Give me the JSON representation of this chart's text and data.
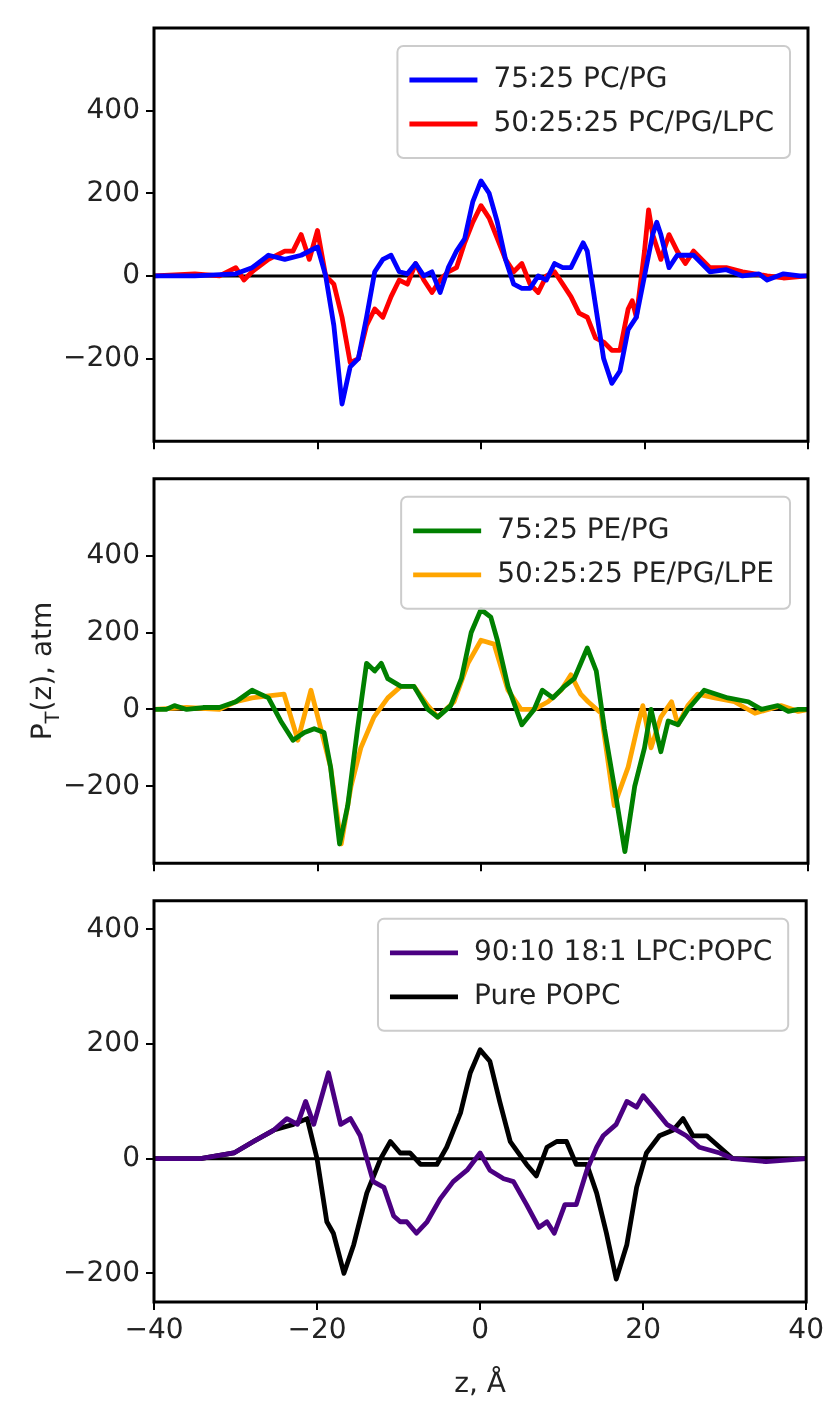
{
  "chart_data": [
    {
      "type": "line",
      "xlim": [
        -40,
        40
      ],
      "xticks": [
        -40,
        -20,
        0,
        20,
        40
      ],
      "ylim": [
        -400,
        600
      ],
      "yticks": [
        -200,
        0,
        200,
        400
      ],
      "tick_labels": "y",
      "grid": false,
      "legend": "top right",
      "ref_lines": [
        {
          "axis": "y",
          "value": 0,
          "color": "#000000"
        }
      ],
      "series": [
        {
          "name": "75:25 PC/PG",
          "color": "#0000ff",
          "x": [
            -40,
            -35,
            -30,
            -28,
            -26,
            -24,
            -22,
            -20,
            -19,
            -18,
            -17,
            -16,
            -15,
            -14,
            -13,
            -12,
            -11,
            -10,
            -9,
            -8,
            -7,
            -6,
            -5,
            -4,
            -3,
            -2,
            -1,
            0,
            1,
            2,
            3,
            4,
            5,
            6,
            7,
            8,
            9,
            10,
            11,
            12,
            12.5,
            13,
            14,
            15,
            16,
            17,
            18,
            19,
            20,
            21,
            21.5,
            22,
            23,
            24,
            25,
            26,
            27,
            28,
            30,
            32,
            34,
            35,
            37,
            39,
            40
          ],
          "values": [
            0,
            0,
            5,
            20,
            50,
            40,
            50,
            70,
            0,
            -120,
            -310,
            -220,
            -200,
            -100,
            10,
            40,
            50,
            10,
            5,
            30,
            0,
            10,
            -40,
            20,
            60,
            90,
            180,
            230,
            200,
            130,
            40,
            -20,
            -30,
            -30,
            0,
            -10,
            30,
            20,
            20,
            60,
            80,
            60,
            -70,
            -200,
            -260,
            -230,
            -130,
            -100,
            0,
            100,
            130,
            100,
            20,
            50,
            50,
            50,
            30,
            10,
            15,
            0,
            5,
            -10,
            5,
            0,
            0
          ]
        },
        {
          "name": "50:25:25 PC/PG/LPC",
          "color": "#ff0000",
          "x": [
            -40,
            -35,
            -32,
            -30,
            -29,
            -28,
            -26,
            -24,
            -23,
            -22,
            -21,
            -20,
            -19,
            -18,
            -17,
            -16,
            -15,
            -14,
            -13,
            -12,
            -11,
            -10,
            -9,
            -8,
            -7,
            -6,
            -5,
            -4,
            -3,
            -2,
            -1,
            0,
            1,
            2,
            3,
            4,
            5,
            6,
            7,
            8,
            9,
            10,
            11,
            12,
            13,
            14,
            15,
            16,
            17,
            18,
            18.5,
            19,
            20,
            20.5,
            21,
            22,
            23,
            24,
            25,
            26,
            27,
            28,
            30,
            32,
            35,
            37,
            40
          ],
          "values": [
            0,
            5,
            0,
            20,
            -10,
            10,
            40,
            60,
            60,
            100,
            40,
            110,
            0,
            -20,
            -100,
            -210,
            -200,
            -120,
            -80,
            -100,
            -50,
            -10,
            -20,
            30,
            -10,
            -40,
            -10,
            10,
            20,
            80,
            130,
            170,
            140,
            90,
            40,
            10,
            30,
            -20,
            -40,
            0,
            10,
            -20,
            -50,
            -90,
            -100,
            -150,
            -160,
            -180,
            -180,
            -80,
            -60,
            -100,
            60,
            160,
            100,
            40,
            100,
            60,
            30,
            60,
            40,
            20,
            20,
            10,
            0,
            -5,
            0
          ]
        }
      ]
    },
    {
      "type": "line",
      "ylabel": "P$_{T}$(z), atm",
      "xlim": [
        -40,
        40
      ],
      "xticks": [
        -40,
        -20,
        0,
        20,
        40
      ],
      "ylim": [
        -400,
        600
      ],
      "yticks": [
        -200,
        0,
        200,
        400
      ],
      "tick_labels": "y",
      "grid": false,
      "legend": "top right",
      "ref_lines": [
        {
          "axis": "y",
          "value": 0,
          "color": "#000000"
        }
      ],
      "series": [
        {
          "name": "75:25 PE/PG",
          "color": "#008000",
          "x": [
            -40,
            -38.5,
            -37.5,
            -36,
            -34,
            -32,
            -30,
            -28,
            -26,
            -24.5,
            -23,
            -21.6,
            -20.4,
            -19.2,
            -18.4,
            -17.3,
            -16.3,
            -15.1,
            -14,
            -13,
            -12.2,
            -11.4,
            -9.8,
            -8.2,
            -6.5,
            -5.3,
            -3.7,
            -2.4,
            -1.2,
            0,
            1.2,
            2,
            3.3,
            5,
            6.5,
            7.5,
            8.8,
            10.2,
            11.4,
            13,
            14.1,
            15.1,
            16.3,
            17.6,
            18.8,
            20,
            20.8,
            22,
            22.9,
            24.1,
            25.3,
            27.3,
            30.2,
            32.7,
            34.3,
            36.3,
            37.6,
            38.8,
            40
          ],
          "values": [
            0,
            0,
            10,
            0,
            5,
            5,
            20,
            50,
            30,
            -30,
            -80,
            -60,
            -50,
            -60,
            -150,
            -350,
            -250,
            -50,
            120,
            100,
            120,
            80,
            60,
            60,
            0,
            -20,
            10,
            80,
            200,
            260,
            240,
            180,
            60,
            -40,
            0,
            50,
            30,
            60,
            80,
            160,
            100,
            -50,
            -200,
            -370,
            -200,
            -100,
            0,
            -110,
            -30,
            -40,
            0,
            50,
            30,
            20,
            0,
            10,
            -5,
            0,
            0
          ]
        },
        {
          "name": "50:25:25 PE/PG/LPE",
          "color": "#ffa500",
          "x": [
            -40,
            -36,
            -32,
            -30,
            -28,
            -26,
            -24.1,
            -22.4,
            -20.8,
            -19.6,
            -18.4,
            -17.1,
            -15.9,
            -14.7,
            -13.1,
            -11.4,
            -9.8,
            -8.2,
            -6.5,
            -5.3,
            -3.3,
            -1.6,
            0,
            1.6,
            3.3,
            4.9,
            6.5,
            8.2,
            9.8,
            11,
            12.2,
            13.1,
            14.7,
            16.3,
            18,
            19.2,
            19.8,
            20.8,
            22,
            23.3,
            24.1,
            25.3,
            26.5,
            28.6,
            31,
            33.5,
            36.7,
            38.8,
            40
          ],
          "values": [
            0,
            5,
            0,
            20,
            30,
            35,
            40,
            -80,
            50,
            -50,
            -150,
            -350,
            -200,
            -100,
            -20,
            30,
            60,
            60,
            10,
            -20,
            20,
            120,
            180,
            170,
            50,
            0,
            0,
            20,
            50,
            90,
            40,
            20,
            -10,
            -250,
            -150,
            -40,
            10,
            -100,
            -20,
            20,
            -40,
            10,
            40,
            30,
            20,
            -10,
            10,
            -5,
            0
          ]
        }
      ]
    },
    {
      "type": "line",
      "xlabel": "z, Å",
      "xlim": [
        -40,
        40
      ],
      "xticks": [
        -40,
        -20,
        0,
        20,
        40
      ],
      "ylim": [
        -250,
        450
      ],
      "yticks": [
        -200,
        0,
        200,
        400
      ],
      "grid": false,
      "legend": "top right",
      "ref_lines": [
        {
          "axis": "y",
          "value": 0,
          "color": "#000000"
        }
      ],
      "series": [
        {
          "name": "90:10 18:1 LPC:POPC",
          "color": "#4b0082",
          "x": [
            -40,
            -34.3,
            -30.2,
            -27.8,
            -25.3,
            -23.7,
            -22.4,
            -21.4,
            -20.4,
            -18.6,
            -17.1,
            -15.9,
            -14.7,
            -13.1,
            -11.8,
            -10.6,
            -9.8,
            -9,
            -7.8,
            -6.5,
            -4.9,
            -3.3,
            -1.6,
            0,
            1.2,
            2.9,
            4.1,
            5.7,
            7.2,
            8.2,
            9.1,
            10.4,
            11.8,
            13.1,
            14.3,
            15.1,
            16.7,
            18,
            19.2,
            20,
            21.2,
            22.9,
            24.1,
            25.3,
            26.9,
            29.4,
            31,
            35.1,
            40
          ],
          "values": [
            0,
            0,
            10,
            30,
            50,
            70,
            60,
            100,
            60,
            150,
            60,
            70,
            40,
            -40,
            -50,
            -100,
            -110,
            -110,
            -130,
            -110,
            -70,
            -40,
            -20,
            10,
            -20,
            -35,
            -40,
            -80,
            -120,
            -110,
            -130,
            -80,
            -80,
            -20,
            20,
            40,
            60,
            100,
            90,
            110,
            90,
            60,
            50,
            40,
            20,
            10,
            0,
            -5,
            0
          ]
        },
        {
          "name": "Pure POPC",
          "color": "#000000",
          "x": [
            -40,
            -34.3,
            -30.2,
            -27.8,
            -25.3,
            -22.9,
            -21.2,
            -20,
            -18.8,
            -18,
            -16.7,
            -15.5,
            -13.9,
            -12.2,
            -11,
            -9.8,
            -8.6,
            -7.3,
            -5.3,
            -4.1,
            -2.4,
            -1.2,
            0,
            1.2,
            2.4,
            3.7,
            5.7,
            6.9,
            8.2,
            9.4,
            10.6,
            11.8,
            13.1,
            14.3,
            15.5,
            16.7,
            18,
            19.2,
            20.4,
            22,
            23.7,
            24.9,
            26.1,
            27.8,
            29.4,
            31,
            35.1,
            40
          ],
          "values": [
            0,
            0,
            10,
            30,
            50,
            60,
            70,
            0,
            -110,
            -130,
            -200,
            -150,
            -60,
            0,
            30,
            10,
            10,
            -10,
            -10,
            20,
            80,
            150,
            190,
            170,
            100,
            30,
            -10,
            -30,
            20,
            30,
            30,
            -10,
            -10,
            -60,
            -130,
            -210,
            -150,
            -50,
            10,
            40,
            50,
            70,
            40,
            40,
            20,
            0,
            0,
            0
          ]
        }
      ]
    }
  ]
}
